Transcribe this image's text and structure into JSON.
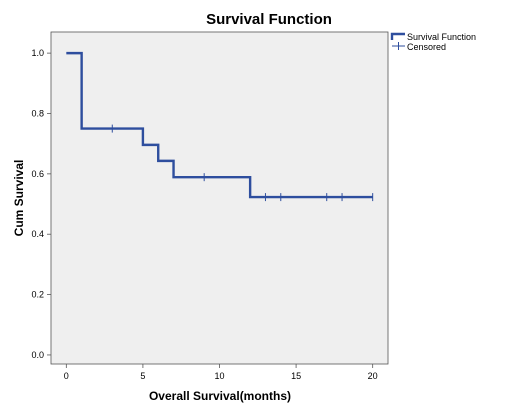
{
  "chart_data": {
    "type": "line",
    "title": "Survival Function",
    "xlabel": "Overall Survival(months)",
    "ylabel": "Cum Survival",
    "xlim": [
      -1,
      21
    ],
    "ylim": [
      -0.03,
      1.07
    ],
    "x_ticks": [
      0,
      5,
      10,
      15,
      20
    ],
    "y_ticks": [
      0.0,
      0.2,
      0.4,
      0.6,
      0.8,
      1.0
    ],
    "x_tick_labels": [
      "0",
      "5",
      "10",
      "15",
      "20"
    ],
    "y_tick_labels": [
      "0.0",
      "0.2",
      "0.4",
      "0.6",
      "0.8",
      "1.0"
    ],
    "grid": false,
    "legend_position": "top-right-outside",
    "colors": {
      "series": "#2e4e9e",
      "plot_bg": "#efefef"
    },
    "series": [
      {
        "name": "Survival Function",
        "kind": "step",
        "x": [
          0,
          1,
          5,
          6,
          7,
          12,
          20
        ],
        "y": [
          1.0,
          0.75,
          0.696,
          0.643,
          0.589,
          0.523,
          0.523
        ]
      },
      {
        "name": "Censored",
        "kind": "censor-marks",
        "x": [
          3,
          9,
          13,
          14,
          17,
          18,
          20
        ],
        "y": [
          0.75,
          0.589,
          0.523,
          0.523,
          0.523,
          0.523,
          0.523
        ]
      }
    ]
  }
}
